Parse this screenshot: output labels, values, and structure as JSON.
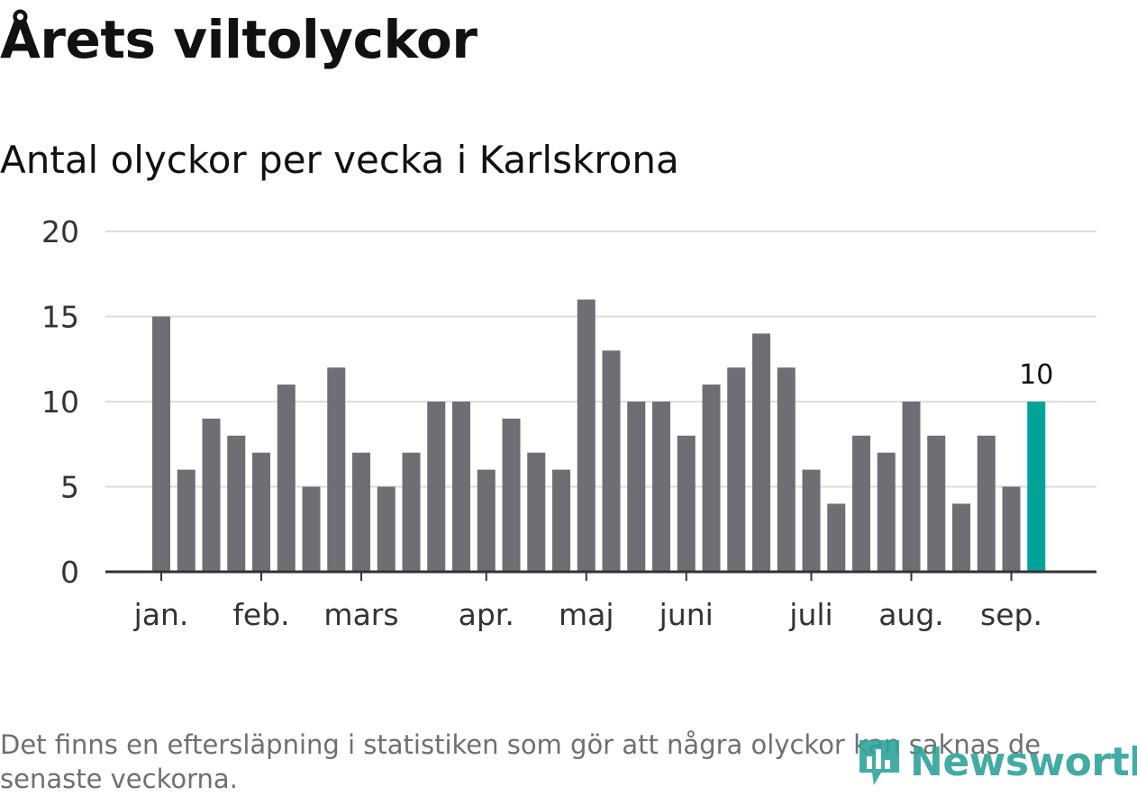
{
  "title": "Årets viltolyckor",
  "subtitle": "Antal olyckor per vecka i Karlskrona",
  "note": "Det finns en eftersläpning i statistiken som gör att några olyckor kan saknas de senaste veckorna.",
  "brand": {
    "name": "Newsworthy",
    "logo_icon": "bar-chart-speech-bubble-icon",
    "color": "#2fa39a"
  },
  "colors": {
    "bar": "#6f6e73",
    "highlight": "#00a39a",
    "grid": "#dddddd",
    "axis": "#333333"
  },
  "chart_data": {
    "type": "bar",
    "x_label": "",
    "y_label": "",
    "ylim": [
      0,
      20
    ],
    "y_ticks": [
      0,
      5,
      10,
      15,
      20
    ],
    "grid": true,
    "values": [
      15,
      6,
      9,
      8,
      7,
      11,
      5,
      12,
      7,
      5,
      7,
      10,
      10,
      6,
      9,
      7,
      6,
      16,
      13,
      10,
      10,
      8,
      11,
      12,
      14,
      12,
      6,
      4,
      8,
      7,
      10,
      8,
      4,
      8,
      5,
      10
    ],
    "highlight_index": 35,
    "highlight_label": "10",
    "month_ticks": [
      {
        "label": "jan.",
        "index": 0
      },
      {
        "label": "feb.",
        "index": 4
      },
      {
        "label": "mars",
        "index": 8
      },
      {
        "label": "apr.",
        "index": 13
      },
      {
        "label": "maj",
        "index": 17
      },
      {
        "label": "juni",
        "index": 21
      },
      {
        "label": "juli",
        "index": 26
      },
      {
        "label": "aug.",
        "index": 30
      },
      {
        "label": "sep.",
        "index": 34
      }
    ]
  }
}
